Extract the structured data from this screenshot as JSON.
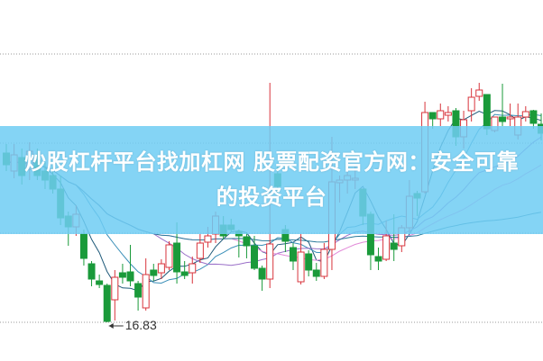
{
  "banner": {
    "title": "炒股杠杆平台找加杠网 股票配资官方网：安全可靠的投资平台"
  },
  "chart_data": {
    "type": "candlestick",
    "ylim": [
      15.97,
      23.99
    ],
    "grid": "dotted horizontal",
    "annotations": [
      {
        "label": "16.83",
        "kind": "low-price arrow"
      }
    ],
    "colors": {
      "up": "#d8343c",
      "down": "#1a9a3a",
      "ma_lines": [
        "#1f5a7a",
        "#3a8fb8",
        "#9a6fc8",
        "#e28ad8",
        "#2a7a9a"
      ],
      "grid": "#999999",
      "banner": "#6ecdf3"
    },
    "moving_averages": [
      5,
      10,
      20,
      30,
      60
    ],
    "ohlc": [
      [
        20.59,
        20.79,
        20.19,
        20.33
      ],
      [
        20.19,
        20.79,
        20.03,
        20.55
      ],
      [
        20.49,
        20.69,
        19.89,
        20.09
      ],
      [
        20.23,
        20.83,
        19.99,
        20.63
      ],
      [
        20.43,
        20.69,
        19.99,
        20.09
      ],
      [
        20.19,
        20.39,
        19.79,
        19.99
      ],
      [
        20.09,
        20.29,
        19.69,
        19.79
      ],
      [
        19.79,
        20.09,
        18.99,
        19.15
      ],
      [
        19.19,
        19.29,
        18.53,
        18.95
      ],
      [
        18.95,
        19.43,
        18.75,
        19.23
      ],
      [
        18.79,
        18.89,
        18.09,
        18.25
      ],
      [
        18.13,
        18.19,
        17.63,
        17.79
      ],
      [
        17.75,
        17.89,
        17.59,
        17.67
      ],
      [
        17.65,
        17.69,
        16.83,
        16.85
      ],
      [
        17.33,
        17.99,
        16.87,
        17.83
      ],
      [
        17.93,
        18.13,
        17.69,
        17.83
      ],
      [
        17.95,
        18.55,
        17.63,
        17.75
      ],
      [
        17.69,
        17.75,
        17.09,
        17.39
      ],
      [
        17.15,
        18.25,
        17.09,
        17.89
      ],
      [
        17.99,
        18.13,
        17.75,
        17.87
      ],
      [
        17.93,
        18.23,
        17.79,
        18.13
      ],
      [
        18.05,
        18.63,
        17.99,
        18.55
      ],
      [
        18.59,
        19.05,
        17.69,
        17.95
      ],
      [
        17.95,
        18.19,
        17.79,
        17.87
      ],
      [
        17.93,
        18.29,
        17.69,
        18.13
      ],
      [
        18.25,
        18.79,
        18.15,
        18.59
      ],
      [
        18.61,
        18.95,
        18.49,
        18.75
      ],
      [
        18.79,
        19.29,
        18.59,
        19.19
      ],
      [
        18.99,
        19.19,
        18.67,
        18.75
      ],
      [
        18.99,
        19.13,
        18.83,
        18.89
      ],
      [
        18.85,
        18.89,
        18.27,
        18.75
      ],
      [
        18.73,
        18.83,
        18.25,
        18.53
      ],
      [
        18.53,
        18.75,
        17.99,
        18.03
      ],
      [
        18.03,
        18.09,
        17.53,
        17.79
      ],
      [
        17.79,
        22.15,
        17.59,
        18.57
      ],
      [
        20.13,
        20.29,
        19.69,
        19.85
      ],
      [
        18.89,
        18.99,
        18.39,
        18.63
      ],
      [
        18.49,
        18.59,
        17.99,
        18.19
      ],
      [
        17.73,
        18.79,
        17.67,
        18.39
      ],
      [
        18.35,
        18.43,
        17.85,
        17.99
      ],
      [
        17.99,
        18.15,
        17.75,
        17.85
      ],
      [
        17.85,
        18.59,
        17.79,
        18.45
      ],
      [
        18.45,
        20.95,
        17.99,
        19.95
      ],
      [
        19.93,
        20.09,
        19.49,
        19.99
      ],
      [
        19.99,
        20.29,
        19.69,
        20.09
      ],
      [
        19.99,
        20.29,
        19.79,
        20.03
      ],
      [
        19.79,
        19.79,
        18.99,
        19.19
      ],
      [
        19.23,
        19.29,
        17.99,
        18.33
      ],
      [
        18.29,
        18.49,
        17.99,
        18.19
      ],
      [
        18.23,
        19.09,
        18.19,
        18.75
      ],
      [
        18.59,
        19.23,
        18.19,
        18.45
      ],
      [
        18.53,
        18.99,
        18.39,
        18.93
      ],
      [
        18.93,
        19.99,
        18.83,
        19.63
      ],
      [
        19.69,
        19.75,
        19.19,
        19.59
      ],
      [
        19.73,
        21.73,
        19.69,
        21.49
      ],
      [
        21.49,
        21.49,
        21.13,
        21.35
      ],
      [
        21.35,
        21.69,
        21.19,
        21.53
      ],
      [
        21.43,
        21.63,
        21.29,
        21.49
      ],
      [
        21.53,
        21.59,
        20.75,
        20.95
      ],
      [
        20.95,
        21.53,
        20.69,
        21.33
      ],
      [
        21.53,
        22.03,
        21.29,
        21.83
      ],
      [
        21.85,
        22.15,
        21.75,
        21.99
      ],
      [
        21.89,
        21.89,
        20.99,
        21.13
      ],
      [
        21.09,
        21.39,
        21.05,
        21.39
      ],
      [
        21.39,
        22.13,
        21.19,
        21.29
      ],
      [
        21.35,
        21.69,
        21.19,
        21.39
      ],
      [
        20.99,
        21.69,
        20.89,
        21.39
      ],
      [
        21.39,
        21.63,
        21.29,
        21.51
      ],
      [
        21.53,
        21.55,
        21.13,
        21.25
      ],
      [
        21.23,
        21.47,
        20.87,
        21.03
      ]
    ]
  }
}
